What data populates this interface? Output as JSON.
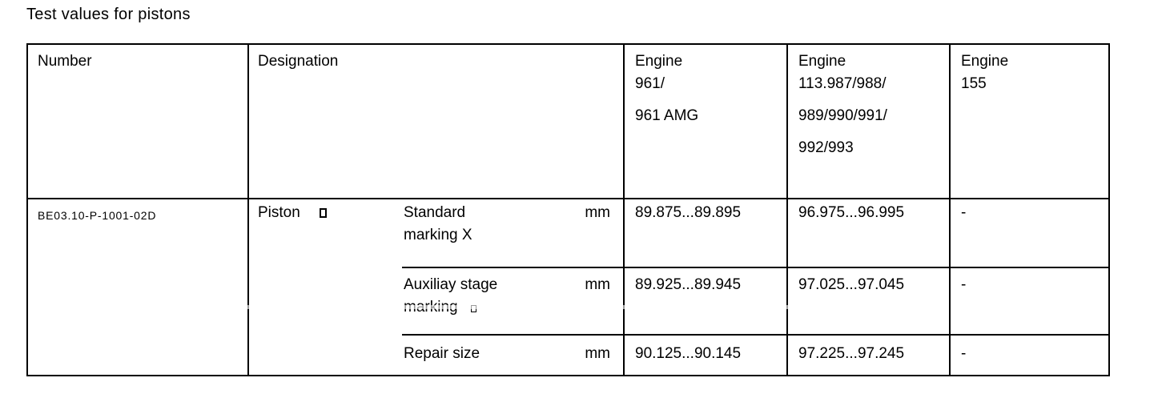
{
  "page": {
    "title": "Test values for pistons"
  },
  "table": {
    "headers": {
      "number": "Number",
      "designation": "Designation",
      "engine_961": {
        "line1": "Engine",
        "line2": "961/",
        "line3": "961 AMG"
      },
      "engine_113": {
        "line1": "Engine",
        "line2": "113.987/988/",
        "line3": "989/990/991/",
        "line4": "992/993"
      },
      "engine_155": {
        "line1": "Engine",
        "line2": "155"
      }
    },
    "row": {
      "number": "BE03.10-P-1001-02D",
      "designation": "Piston",
      "sub_rows": [
        {
          "name_line1": "Standard",
          "name_line2": "marking X",
          "unit": "mm",
          "engine_961": "89.875...89.895",
          "engine_113": "96.975...96.995",
          "engine_155": "-"
        },
        {
          "name_line1": "Auxiliay stage",
          "name_line2": "marking",
          "unit": "mm",
          "engine_961": "89.925...89.945",
          "engine_113": "97.025...97.045",
          "engine_155": "-"
        },
        {
          "name_line1": "Repair size",
          "name_line2": "",
          "unit": "mm",
          "engine_961": "90.125...90.145",
          "engine_113": "97.225...97.245",
          "engine_155": "-"
        }
      ]
    }
  }
}
